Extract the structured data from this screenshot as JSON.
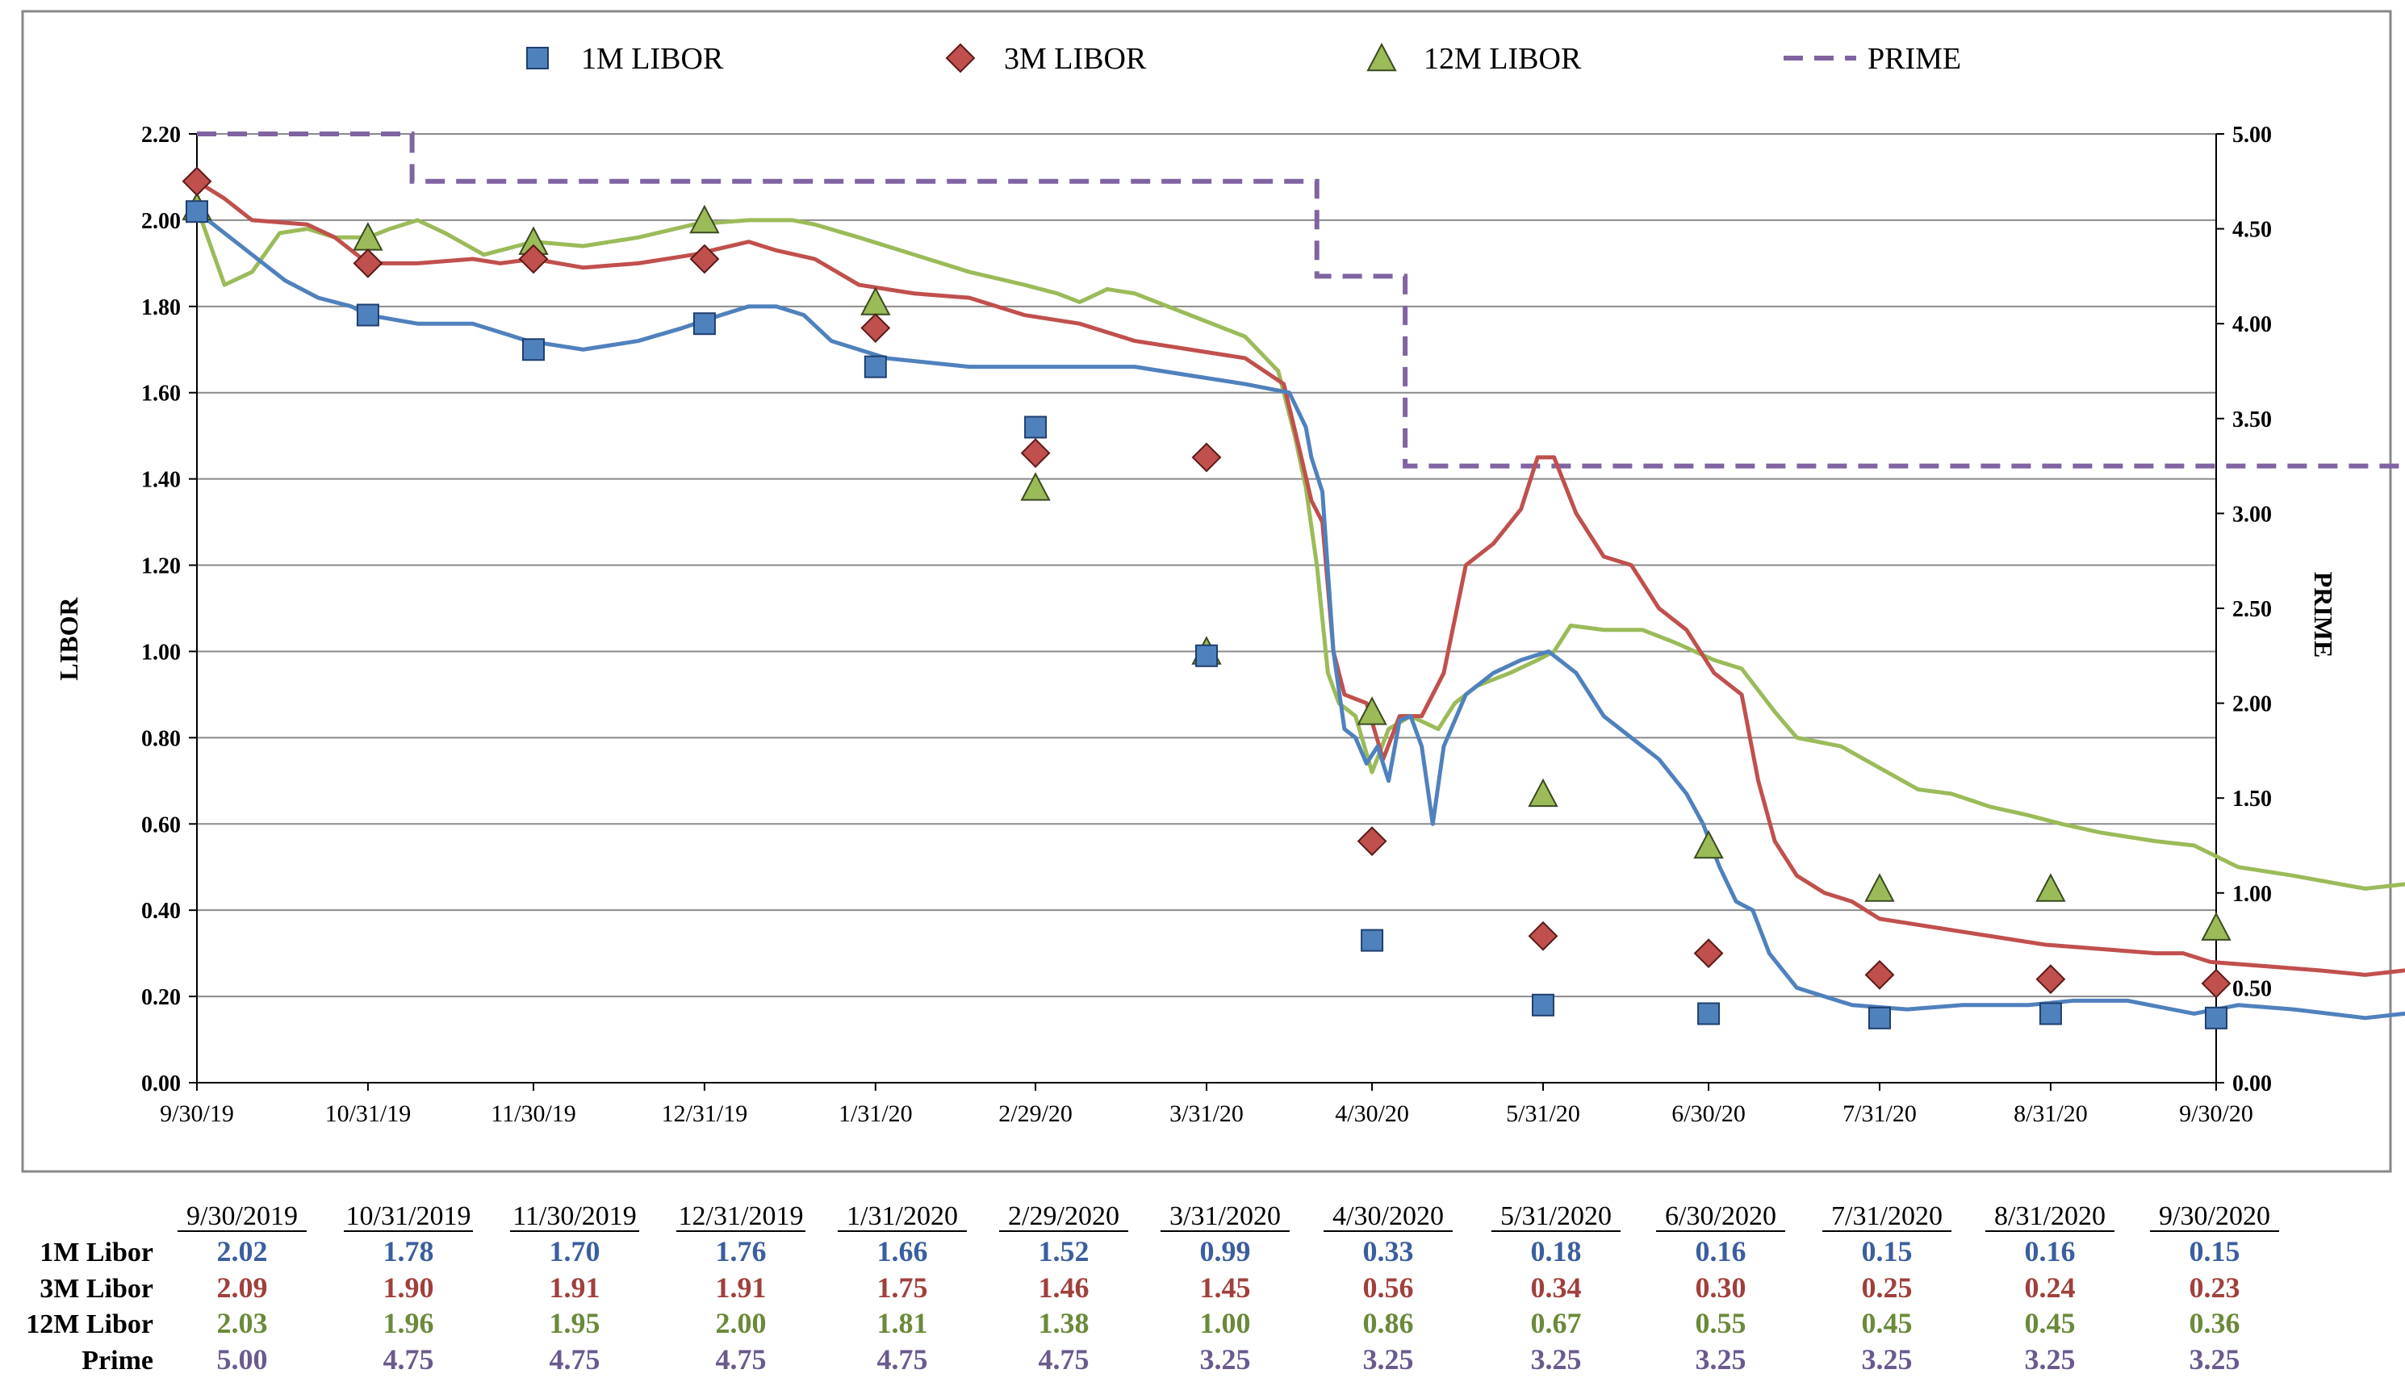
{
  "chart_data": {
    "type": "line",
    "legend": {
      "placement": "top",
      "entries": [
        "1M LIBOR",
        "3M LIBOR",
        "12M LIBOR",
        "PRIME"
      ]
    },
    "y_left": {
      "label": "LIBOR",
      "range": [
        0,
        2.2
      ],
      "ticks": [
        "0.00",
        "0.20",
        "0.40",
        "0.60",
        "0.80",
        "1.00",
        "1.20",
        "1.40",
        "1.60",
        "1.80",
        "2.00",
        "2.20"
      ]
    },
    "y_right": {
      "label": "PRIME",
      "range": [
        0,
        5
      ],
      "ticks": [
        "0.00",
        "0.50",
        "1.00",
        "1.50",
        "2.00",
        "2.50",
        "3.00",
        "3.50",
        "4.00",
        "4.50",
        "5.00"
      ]
    },
    "x_ticks": [
      "9/30/19",
      "10/31/19",
      "11/30/19",
      "12/31/19",
      "1/31/20",
      "2/29/20",
      "3/31/20",
      "4/30/20",
      "5/31/20",
      "6/30/20",
      "7/31/20",
      "8/31/20",
      "9/30/20"
    ],
    "grid": true,
    "colors": {
      "1M": "#4f81bd",
      "3M": "#c0504d",
      "12M": "#9bbb59",
      "PRIME": "#8064a2"
    },
    "series": [
      {
        "key": "1M",
        "marker": "square",
        "points": [
          [
            0,
            2.02
          ],
          [
            5,
            1.97
          ],
          [
            10,
            1.92
          ],
          [
            16,
            1.86
          ],
          [
            22,
            1.82
          ],
          [
            28,
            1.8
          ],
          [
            31,
            1.78
          ],
          [
            40,
            1.76
          ],
          [
            50,
            1.76
          ],
          [
            60,
            1.72
          ],
          [
            70,
            1.7
          ],
          [
            80,
            1.72
          ],
          [
            88,
            1.75
          ],
          [
            95,
            1.78
          ],
          [
            100,
            1.8
          ],
          [
            105,
            1.8
          ],
          [
            110,
            1.78
          ],
          [
            115,
            1.72
          ],
          [
            125,
            1.68
          ],
          [
            140,
            1.66
          ],
          [
            160,
            1.66
          ],
          [
            170,
            1.66
          ],
          [
            180,
            1.64
          ],
          [
            190,
            1.62
          ],
          [
            198,
            1.6
          ],
          [
            201,
            1.52
          ],
          [
            202,
            1.45
          ],
          [
            204,
            1.37
          ],
          [
            206,
            1.0
          ],
          [
            208,
            0.82
          ],
          [
            210,
            0.8
          ],
          [
            212,
            0.74
          ],
          [
            214,
            0.78
          ],
          [
            216,
            0.7
          ],
          [
            218,
            0.84
          ],
          [
            220,
            0.85
          ],
          [
            222,
            0.78
          ],
          [
            224,
            0.6
          ],
          [
            226,
            0.78
          ],
          [
            230,
            0.9
          ],
          [
            235,
            0.95
          ],
          [
            240,
            0.98
          ],
          [
            245,
            1.0
          ],
          [
            250,
            0.95
          ],
          [
            255,
            0.85
          ],
          [
            260,
            0.8
          ],
          [
            265,
            0.75
          ],
          [
            270,
            0.67
          ],
          [
            273,
            0.6
          ],
          [
            276,
            0.5
          ],
          [
            279,
            0.42
          ],
          [
            282,
            0.4
          ],
          [
            285,
            0.3
          ],
          [
            290,
            0.22
          ],
          [
            295,
            0.2
          ],
          [
            300,
            0.18
          ],
          [
            310,
            0.17
          ],
          [
            320,
            0.18
          ],
          [
            332,
            0.18
          ],
          [
            340,
            0.19
          ],
          [
            350,
            0.19
          ],
          [
            362,
            0.16
          ],
          [
            370,
            0.18
          ],
          [
            380,
            0.17
          ],
          [
            393,
            0.15
          ],
          [
            400,
            0.16
          ],
          [
            410,
            0.16
          ],
          [
            420,
            0.17
          ],
          [
            424,
            0.16
          ],
          [
            435,
            0.16
          ],
          [
            445,
            0.15
          ],
          [
            455,
            0.15
          ],
          [
            462,
            0.15
          ],
          [
            466,
            0.14
          ]
        ]
      },
      {
        "key": "3M",
        "marker": "diamond",
        "points": [
          [
            0,
            2.09
          ],
          [
            5,
            2.05
          ],
          [
            10,
            2.0
          ],
          [
            20,
            1.99
          ],
          [
            25,
            1.96
          ],
          [
            31,
            1.9
          ],
          [
            40,
            1.9
          ],
          [
            50,
            1.91
          ],
          [
            55,
            1.9
          ],
          [
            61,
            1.91
          ],
          [
            70,
            1.89
          ],
          [
            80,
            1.9
          ],
          [
            90,
            1.92
          ],
          [
            100,
            1.95
          ],
          [
            105,
            1.93
          ],
          [
            112,
            1.91
          ],
          [
            120,
            1.85
          ],
          [
            130,
            1.83
          ],
          [
            140,
            1.82
          ],
          [
            150,
            1.78
          ],
          [
            160,
            1.76
          ],
          [
            170,
            1.72
          ],
          [
            180,
            1.7
          ],
          [
            190,
            1.68
          ],
          [
            197,
            1.62
          ],
          [
            200,
            1.46
          ],
          [
            202,
            1.35
          ],
          [
            204,
            1.3
          ],
          [
            206,
            1.0
          ],
          [
            208,
            0.9
          ],
          [
            212,
            0.88
          ],
          [
            215,
            0.75
          ],
          [
            218,
            0.85
          ],
          [
            222,
            0.85
          ],
          [
            226,
            0.95
          ],
          [
            230,
            1.2
          ],
          [
            235,
            1.25
          ],
          [
            240,
            1.33
          ],
          [
            243,
            1.45
          ],
          [
            246,
            1.45
          ],
          [
            250,
            1.32
          ],
          [
            255,
            1.22
          ],
          [
            260,
            1.2
          ],
          [
            265,
            1.1
          ],
          [
            270,
            1.05
          ],
          [
            275,
            0.95
          ],
          [
            280,
            0.9
          ],
          [
            283,
            0.7
          ],
          [
            286,
            0.56
          ],
          [
            290,
            0.48
          ],
          [
            295,
            0.44
          ],
          [
            300,
            0.42
          ],
          [
            305,
            0.38
          ],
          [
            315,
            0.36
          ],
          [
            320,
            0.35
          ],
          [
            325,
            0.34
          ],
          [
            335,
            0.32
          ],
          [
            345,
            0.31
          ],
          [
            355,
            0.3
          ],
          [
            360,
            0.3
          ],
          [
            365,
            0.28
          ],
          [
            375,
            0.27
          ],
          [
            385,
            0.26
          ],
          [
            393,
            0.25
          ],
          [
            400,
            0.26
          ],
          [
            410,
            0.27
          ],
          [
            418,
            0.25
          ],
          [
            424,
            0.24
          ],
          [
            435,
            0.25
          ],
          [
            445,
            0.24
          ],
          [
            455,
            0.23
          ],
          [
            462,
            0.22
          ],
          [
            466,
            0.23
          ]
        ]
      },
      {
        "key": "12M",
        "marker": "triangle",
        "points": [
          [
            0,
            2.03
          ],
          [
            5,
            1.85
          ],
          [
            10,
            1.88
          ],
          [
            15,
            1.97
          ],
          [
            20,
            1.98
          ],
          [
            25,
            1.96
          ],
          [
            31,
            1.96
          ],
          [
            35,
            1.98
          ],
          [
            40,
            2.0
          ],
          [
            45,
            1.97
          ],
          [
            52,
            1.92
          ],
          [
            58,
            1.94
          ],
          [
            61,
            1.95
          ],
          [
            70,
            1.94
          ],
          [
            80,
            1.96
          ],
          [
            90,
            1.99
          ],
          [
            100,
            2.0
          ],
          [
            108,
            2.0
          ],
          [
            112,
            1.99
          ],
          [
            120,
            1.96
          ],
          [
            130,
            1.92
          ],
          [
            140,
            1.88
          ],
          [
            150,
            1.85
          ],
          [
            156,
            1.83
          ],
          [
            160,
            1.81
          ],
          [
            165,
            1.84
          ],
          [
            170,
            1.83
          ],
          [
            180,
            1.78
          ],
          [
            190,
            1.73
          ],
          [
            196,
            1.65
          ],
          [
            199,
            1.5
          ],
          [
            201,
            1.38
          ],
          [
            203,
            1.2
          ],
          [
            205,
            0.95
          ],
          [
            207,
            0.88
          ],
          [
            210,
            0.85
          ],
          [
            213,
            0.72
          ],
          [
            216,
            0.82
          ],
          [
            220,
            0.85
          ],
          [
            225,
            0.82
          ],
          [
            228,
            0.88
          ],
          [
            232,
            0.92
          ],
          [
            238,
            0.95
          ],
          [
            243,
            0.98
          ],
          [
            246,
            1.0
          ],
          [
            249,
            1.06
          ],
          [
            255,
            1.05
          ],
          [
            262,
            1.05
          ],
          [
            268,
            1.02
          ],
          [
            275,
            0.98
          ],
          [
            280,
            0.96
          ],
          [
            286,
            0.86
          ],
          [
            290,
            0.8
          ],
          [
            298,
            0.78
          ],
          [
            305,
            0.73
          ],
          [
            312,
            0.68
          ],
          [
            318,
            0.67
          ],
          [
            325,
            0.64
          ],
          [
            332,
            0.62
          ],
          [
            338,
            0.6
          ],
          [
            345,
            0.58
          ],
          [
            355,
            0.56
          ],
          [
            362,
            0.55
          ],
          [
            370,
            0.5
          ],
          [
            380,
            0.48
          ],
          [
            393,
            0.45
          ],
          [
            400,
            0.46
          ],
          [
            410,
            0.46
          ],
          [
            418,
            0.44
          ],
          [
            424,
            0.45
          ],
          [
            435,
            0.43
          ],
          [
            445,
            0.4
          ],
          [
            455,
            0.38
          ],
          [
            462,
            0.37
          ],
          [
            466,
            0.36
          ]
        ]
      }
    ],
    "prime_steps": [
      [
        0,
        5.0
      ],
      [
        39,
        5.0
      ],
      [
        39,
        4.75
      ],
      [
        203,
        4.75
      ],
      [
        203,
        4.25
      ],
      [
        219,
        4.25
      ],
      [
        219,
        3.25
      ],
      [
        466,
        3.25
      ]
    ],
    "marker_points": {
      "1M": [
        [
          0,
          2.02
        ],
        [
          31,
          1.78
        ],
        [
          61,
          1.7
        ],
        [
          92,
          1.76
        ],
        [
          123,
          1.66
        ],
        [
          152,
          1.52
        ],
        [
          183,
          0.99
        ],
        [
          213,
          0.33
        ],
        [
          244,
          0.18
        ],
        [
          274,
          0.16
        ],
        [
          305,
          0.15
        ],
        [
          336,
          0.16
        ],
        [
          366,
          0.15
        ]
      ],
      "3M": [
        [
          0,
          2.09
        ],
        [
          31,
          1.9
        ],
        [
          61,
          1.91
        ],
        [
          92,
          1.91
        ],
        [
          123,
          1.75
        ],
        [
          152,
          1.46
        ],
        [
          183,
          1.45
        ],
        [
          213,
          0.56
        ],
        [
          244,
          0.34
        ],
        [
          274,
          0.3
        ],
        [
          305,
          0.25
        ],
        [
          336,
          0.24
        ],
        [
          366,
          0.23
        ]
      ],
      "12M": [
        [
          0,
          2.03
        ],
        [
          31,
          1.96
        ],
        [
          61,
          1.95
        ],
        [
          92,
          2.0
        ],
        [
          123,
          1.81
        ],
        [
          152,
          1.38
        ],
        [
          183,
          1.0
        ],
        [
          213,
          0.86
        ],
        [
          244,
          0.67
        ],
        [
          274,
          0.55
        ],
        [
          305,
          0.45
        ],
        [
          336,
          0.45
        ],
        [
          366,
          0.36
        ]
      ]
    }
  },
  "table": {
    "dates": [
      "9/30/2019",
      "10/31/2019",
      "11/30/2019",
      "12/31/2019",
      "1/31/2020",
      "2/29/2020",
      "3/31/2020",
      "4/30/2020",
      "5/31/2020",
      "6/30/2020",
      "7/31/2020",
      "8/31/2020",
      "9/30/2020"
    ],
    "rows": [
      {
        "label": "1M Libor",
        "color": "#3a5f9e",
        "values": [
          "2.02",
          "1.78",
          "1.70",
          "1.76",
          "1.66",
          "1.52",
          "0.99",
          "0.33",
          "0.18",
          "0.16",
          "0.15",
          "0.16",
          "0.15"
        ]
      },
      {
        "label": "3M Libor",
        "color": "#a0403d",
        "values": [
          "2.09",
          "1.90",
          "1.91",
          "1.91",
          "1.75",
          "1.46",
          "1.45",
          "0.56",
          "0.34",
          "0.30",
          "0.25",
          "0.24",
          "0.23"
        ]
      },
      {
        "label": "12M Libor",
        "color": "#6b8a3a",
        "values": [
          "2.03",
          "1.96",
          "1.95",
          "2.00",
          "1.81",
          "1.38",
          "1.00",
          "0.86",
          "0.67",
          "0.55",
          "0.45",
          "0.45",
          "0.36"
        ]
      },
      {
        "label": "Prime",
        "color": "#6a5a8e",
        "values": [
          "5.00",
          "4.75",
          "4.75",
          "4.75",
          "4.75",
          "4.75",
          "3.25",
          "3.25",
          "3.25",
          "3.25",
          "3.25",
          "3.25",
          "3.25"
        ]
      }
    ]
  }
}
